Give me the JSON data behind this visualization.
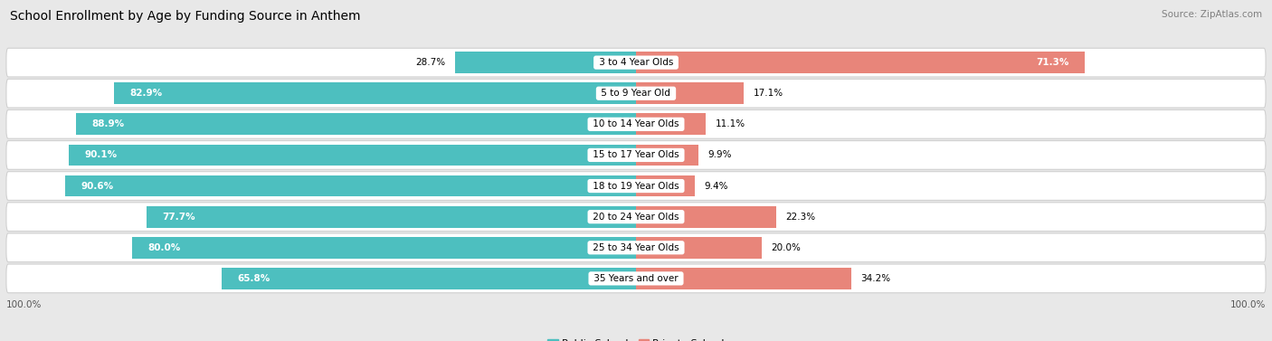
{
  "title": "School Enrollment by Age by Funding Source in Anthem",
  "source": "Source: ZipAtlas.com",
  "categories": [
    "3 to 4 Year Olds",
    "5 to 9 Year Old",
    "10 to 14 Year Olds",
    "15 to 17 Year Olds",
    "18 to 19 Year Olds",
    "20 to 24 Year Olds",
    "25 to 34 Year Olds",
    "35 Years and over"
  ],
  "public_values": [
    28.7,
    82.9,
    88.9,
    90.1,
    90.6,
    77.7,
    80.0,
    65.8
  ],
  "private_values": [
    71.3,
    17.1,
    11.1,
    9.9,
    9.4,
    22.3,
    20.0,
    34.2
  ],
  "public_color": "#4dbfbf",
  "private_color": "#e8857a",
  "bg_color": "#e8e8e8",
  "row_bg_color": "#ffffff",
  "row_border_color": "#d0d0d0",
  "title_fontsize": 10,
  "label_fontsize": 7.5,
  "cat_fontsize": 7.5,
  "axis_label_fontsize": 7.5,
  "legend_fontsize": 8,
  "source_fontsize": 7.5
}
